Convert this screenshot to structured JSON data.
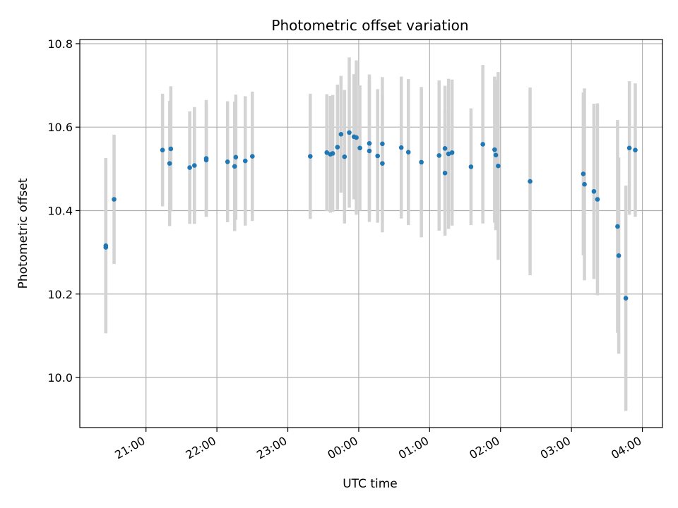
{
  "chart_data": {
    "type": "scatter",
    "title": "Photometric offset variation",
    "xlabel": "UTC time",
    "ylabel": "Photometric offset",
    "grid": true,
    "xlim": [
      "20:04",
      "04:17"
    ],
    "ylim": [
      9.88,
      10.81
    ],
    "x_ticks": [
      "21:00",
      "22:00",
      "23:00",
      "00:00",
      "01:00",
      "02:00",
      "03:00",
      "04:00"
    ],
    "y_ticks": [
      "10.0",
      "10.2",
      "10.4",
      "10.6",
      "10.8"
    ],
    "marker_color": "#1f77b4",
    "errorbar_color": "#d3d3d3",
    "series": [
      {
        "x": [
          "20:26",
          "20:26",
          "20:33",
          "21:14",
          "21:20",
          "21:21",
          "21:37",
          "21:41",
          "21:51",
          "21:51",
          "22:09",
          "22:15",
          "22:16",
          "22:24",
          "22:30",
          "23:19",
          "23:33",
          "23:36",
          "23:38",
          "23:42",
          "23:45",
          "23:48",
          "23:52",
          "23:56",
          "23:58",
          "00:01",
          "00:09",
          "00:09",
          "00:16",
          "00:20",
          "00:20",
          "00:36",
          "00:42",
          "00:53",
          "01:08",
          "01:13",
          "01:13",
          "01:16",
          "01:19",
          "01:35",
          "01:45",
          "01:55",
          "01:56",
          "01:58",
          "02:25",
          "03:10",
          "03:11",
          "03:19",
          "03:22",
          "03:39",
          "03:40",
          "03:46",
          "03:49",
          "03:54"
        ],
        "y": [
          10.312,
          10.316,
          10.427,
          10.545,
          10.513,
          10.548,
          10.503,
          10.508,
          10.521,
          10.525,
          10.517,
          10.506,
          10.528,
          10.519,
          10.53,
          10.53,
          10.539,
          10.535,
          10.537,
          10.552,
          10.583,
          10.529,
          10.587,
          10.577,
          10.575,
          10.55,
          10.561,
          10.543,
          10.531,
          10.513,
          10.56,
          10.551,
          10.54,
          10.516,
          10.532,
          10.49,
          10.549,
          10.536,
          10.539,
          10.505,
          10.559,
          10.546,
          10.533,
          10.507,
          10.47,
          10.488,
          10.463,
          10.446,
          10.427,
          10.362,
          10.292,
          10.19,
          10.55,
          10.545
        ],
        "yerr_low": [
          0.205,
          0.21,
          0.155,
          0.135,
          0.15,
          0.15,
          0.135,
          0.14,
          0.135,
          0.14,
          0.145,
          0.155,
          0.15,
          0.155,
          0.155,
          0.15,
          0.14,
          0.14,
          0.14,
          0.15,
          0.14,
          0.16,
          0.18,
          0.15,
          0.185,
          0.15,
          0.165,
          0.17,
          0.16,
          0.165,
          0.16,
          0.17,
          0.175,
          0.18,
          0.18,
          0.15,
          0.15,
          0.18,
          0.175,
          0.14,
          0.19,
          0.175,
          0.18,
          0.225,
          0.225,
          0.195,
          0.23,
          0.21,
          0.23,
          0.255,
          0.235,
          0.27,
          0.16,
          0.16
        ],
        "yerr_high": [
          0.205,
          0.21,
          0.155,
          0.135,
          0.15,
          0.15,
          0.135,
          0.14,
          0.135,
          0.14,
          0.145,
          0.155,
          0.15,
          0.155,
          0.155,
          0.15,
          0.14,
          0.14,
          0.14,
          0.15,
          0.14,
          0.16,
          0.18,
          0.15,
          0.185,
          0.15,
          0.165,
          0.17,
          0.16,
          0.165,
          0.16,
          0.17,
          0.175,
          0.18,
          0.18,
          0.15,
          0.15,
          0.18,
          0.175,
          0.14,
          0.19,
          0.175,
          0.18,
          0.225,
          0.225,
          0.195,
          0.23,
          0.21,
          0.23,
          0.255,
          0.235,
          0.27,
          0.16,
          0.16
        ]
      }
    ]
  }
}
